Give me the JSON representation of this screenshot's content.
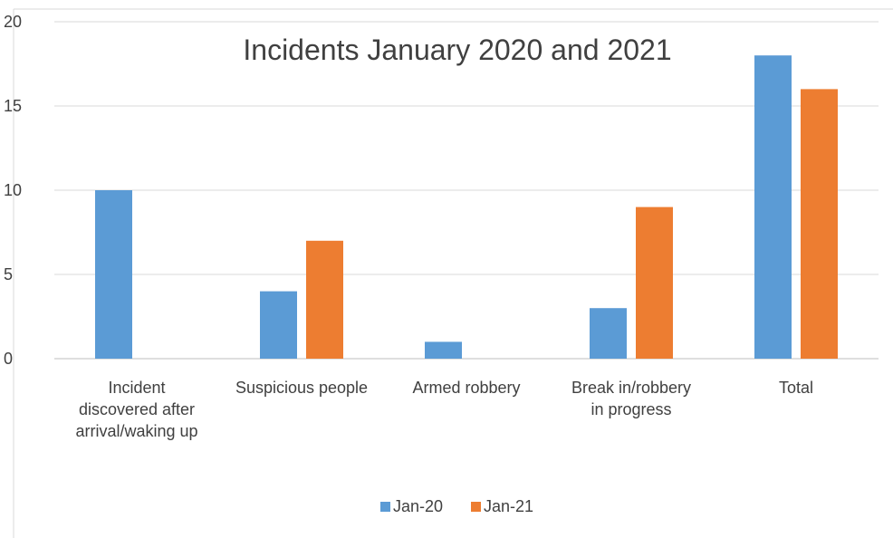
{
  "chart_data": {
    "type": "bar",
    "title": "Incidents January 2020 and 2021",
    "categories": [
      [
        "Incident",
        "discovered after",
        "arrival/waking up"
      ],
      [
        "Suspicious people"
      ],
      [
        "Armed robbery"
      ],
      [
        "Break in/robbery",
        "in progress"
      ],
      [
        "Total"
      ]
    ],
    "series": [
      {
        "name": "Jan-20",
        "color": "#5B9BD5",
        "values": [
          10,
          4,
          1,
          3,
          18
        ]
      },
      {
        "name": "Jan-21",
        "color": "#ED7D31",
        "values": [
          0,
          7,
          0,
          9,
          16
        ]
      }
    ],
    "ylim": [
      0,
      20
    ],
    "yticks": [
      0,
      5,
      10,
      15,
      20
    ],
    "grid": true,
    "legend": "bottom"
  }
}
